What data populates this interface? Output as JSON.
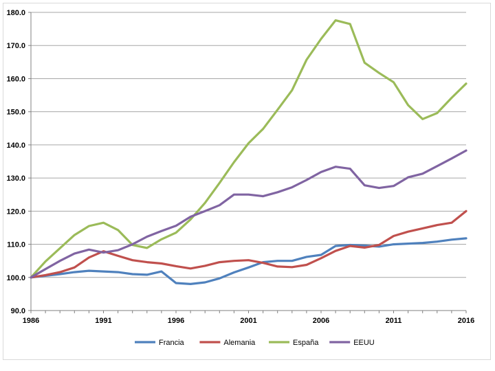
{
  "chart_data": {
    "type": "line",
    "title": "",
    "xlabel": "",
    "ylabel": "",
    "x": [
      1986,
      1987,
      1988,
      1989,
      1990,
      1991,
      1992,
      1993,
      1994,
      1995,
      1996,
      1997,
      1998,
      1999,
      2000,
      2001,
      2002,
      2003,
      2004,
      2005,
      2006,
      2007,
      2008,
      2009,
      2010,
      2011,
      2012,
      2013,
      2014,
      2015,
      2016
    ],
    "xlim": [
      1986,
      2016
    ],
    "ylim": [
      90,
      180
    ],
    "y_ticks": [
      "90.0",
      "100.0",
      "110.0",
      "120.0",
      "130.0",
      "140.0",
      "150.0",
      "160.0",
      "170.0",
      "180.0"
    ],
    "x_ticks": [
      "1986",
      "1991",
      "1996",
      "2001",
      "2006",
      "2011",
      "2016"
    ],
    "grid": "horizontal",
    "legend_position": "bottom",
    "series": [
      {
        "name": "Francia",
        "color": "#4f81bd",
        "values": [
          100.0,
          100.5,
          101.0,
          101.6,
          102.0,
          101.8,
          101.6,
          101.0,
          100.8,
          101.8,
          98.3,
          98.0,
          98.5,
          99.7,
          101.5,
          103.0,
          104.6,
          105.0,
          105.0,
          106.2,
          106.8,
          109.5,
          109.8,
          109.6,
          109.3,
          110.0,
          110.2,
          110.4,
          110.8,
          111.4,
          111.8
        ]
      },
      {
        "name": "Alemania",
        "color": "#c0504d",
        "values": [
          100.0,
          100.7,
          101.6,
          103.0,
          106.0,
          107.9,
          106.5,
          105.2,
          104.6,
          104.2,
          103.4,
          102.7,
          103.5,
          104.6,
          105.0,
          105.2,
          104.4,
          103.3,
          103.1,
          103.8,
          105.8,
          108.0,
          109.5,
          109.0,
          109.8,
          112.5,
          113.8,
          114.8,
          115.8,
          116.5,
          120.0
        ]
      },
      {
        "name": "España",
        "color": "#9bbb59",
        "values": [
          100.0,
          104.8,
          108.8,
          112.8,
          115.5,
          116.5,
          114.3,
          109.8,
          108.9,
          111.5,
          113.5,
          117.5,
          122.5,
          128.5,
          134.8,
          140.5,
          144.8,
          150.6,
          156.5,
          165.7,
          172.0,
          177.6,
          176.5,
          164.8,
          161.7,
          158.9,
          152.0,
          147.8,
          149.6,
          154.2,
          158.5
        ]
      },
      {
        "name": "EEUU",
        "color": "#8064a2",
        "values": [
          100.0,
          102.5,
          105.0,
          107.2,
          108.4,
          107.5,
          108.2,
          110.0,
          112.3,
          114.0,
          115.6,
          118.3,
          120.0,
          121.8,
          125.0,
          125.0,
          124.5,
          125.7,
          127.2,
          129.4,
          131.8,
          133.4,
          132.8,
          127.8,
          127.0,
          127.6,
          130.2,
          131.3,
          133.6,
          135.9,
          138.3
        ]
      }
    ]
  }
}
